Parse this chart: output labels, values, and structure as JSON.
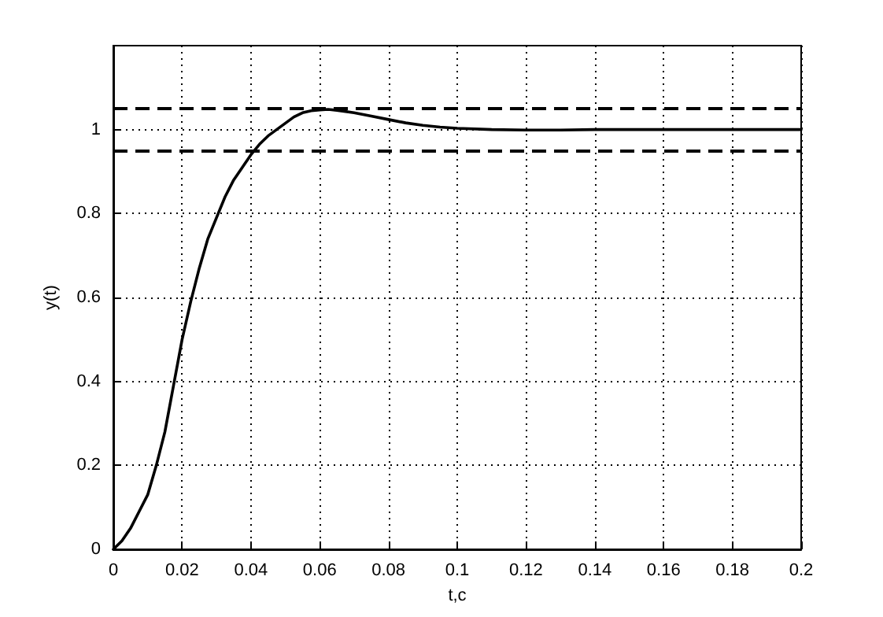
{
  "chart_data": {
    "type": "line",
    "xlabel": "t,c",
    "ylabel": "y(t)",
    "x": [
      0,
      0.0025,
      0.005,
      0.0075,
      0.01,
      0.0125,
      0.015,
      0.0175,
      0.02,
      0.0225,
      0.025,
      0.0275,
      0.03,
      0.0325,
      0.035,
      0.0375,
      0.04,
      0.0425,
      0.045,
      0.0475,
      0.05,
      0.0525,
      0.055,
      0.0575,
      0.06,
      0.0625,
      0.065,
      0.07,
      0.075,
      0.08,
      0.085,
      0.09,
      0.095,
      0.1,
      0.11,
      0.12,
      0.13,
      0.14,
      0.15,
      0.16,
      0.18,
      0.2
    ],
    "series": [
      {
        "color": "#000000",
        "values": [
          0,
          0.02,
          0.05,
          0.09,
          0.13,
          0.2,
          0.28,
          0.39,
          0.5,
          0.59,
          0.67,
          0.74,
          0.79,
          0.84,
          0.88,
          0.91,
          0.94,
          0.965,
          0.985,
          1.0,
          1.015,
          1.03,
          1.04,
          1.045,
          1.047,
          1.048,
          1.046,
          1.04,
          1.032,
          1.024,
          1.016,
          1.01,
          1.006,
          1.003,
          1.0,
          0.999,
          0.999,
          1.0,
          1.0,
          1.0,
          1.0,
          1.0
        ]
      }
    ],
    "xlim": [
      0,
      0.2
    ],
    "xticks": [
      0,
      0.02,
      0.04,
      0.06,
      0.08,
      0.1,
      0.12,
      0.14,
      0.16,
      0.18,
      0.2
    ],
    "ylim": [
      0,
      1.2
    ],
    "yticks": [
      0,
      0.2,
      0.4,
      0.6,
      0.8,
      1
    ],
    "ref_lines": [
      {
        "axis": "y",
        "value": 1.05,
        "color": "#000000",
        "line_style": "dashed"
      },
      {
        "axis": "y",
        "value": 0.95,
        "color": "#000000",
        "line_style": "dashed"
      }
    ],
    "grid": true,
    "marker": "none",
    "line_style": "solid"
  }
}
